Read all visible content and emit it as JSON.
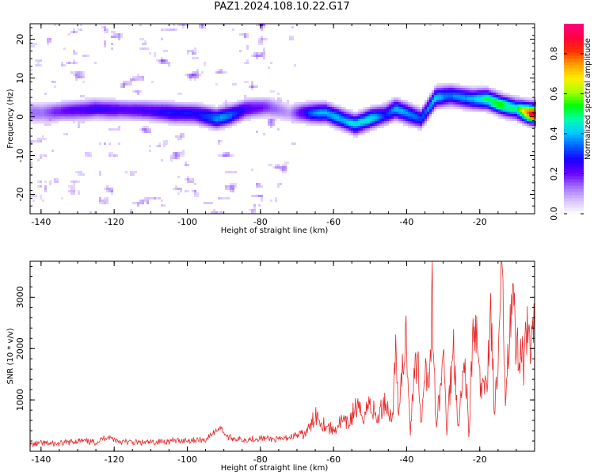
{
  "title": "PAZ1.2024.108.10.22.G17",
  "colors": {
    "snr_line": "#e8282a",
    "axis": "#000000",
    "background": "#ffffff"
  },
  "chart_data": [
    {
      "type": "heatmap",
      "title": "PAZ1.2024.108.10.22.G17",
      "xlabel": "Height of straight line (km)",
      "ylabel": "Frequency (Hz)",
      "xlim": [
        -143,
        -5
      ],
      "ylim": [
        -25,
        24
      ],
      "xticks": [
        -140,
        -120,
        -100,
        -80,
        -60,
        -40,
        -20
      ],
      "yticks": [
        -20,
        -10,
        0,
        10,
        20
      ],
      "xtick_labels": [
        "-140",
        "-120",
        "-100",
        "-80",
        "-60",
        "-40",
        "-20"
      ],
      "ytick_labels": [
        "-20",
        "-10",
        "0",
        "10",
        "20"
      ],
      "colorbar": {
        "label": "Normalized spectral amplitude",
        "range": [
          0,
          0.95
        ],
        "ticks": [
          0.0,
          0.2,
          0.4,
          0.6,
          0.8
        ],
        "tick_labels": [
          "0.0",
          "0.2",
          "0.4",
          "0.6",
          "0.8"
        ],
        "colormap": [
          "#ffffff",
          "#d9c2ff",
          "#a070ff",
          "#6a00ff",
          "#1a00ff",
          "#0060ff",
          "#00ccff",
          "#00ffaa",
          "#00ff00",
          "#aaff00",
          "#ffee00",
          "#ffa000",
          "#ff3000",
          "#ff0040",
          "#ff0080"
        ]
      },
      "ridge": [
        {
          "x": -140,
          "f": 1.0,
          "a": 0.15
        },
        {
          "x": -132,
          "f": 1.5,
          "a": 0.22
        },
        {
          "x": -125,
          "f": 2.0,
          "a": 0.25
        },
        {
          "x": -118,
          "f": 1.8,
          "a": 0.22
        },
        {
          "x": -110,
          "f": 1.5,
          "a": 0.25
        },
        {
          "x": -104,
          "f": 1.0,
          "a": 0.3
        },
        {
          "x": -98,
          "f": 0.8,
          "a": 0.28
        },
        {
          "x": -92,
          "f": -0.5,
          "a": 0.38
        },
        {
          "x": -88,
          "f": 0.5,
          "a": 0.35
        },
        {
          "x": -84,
          "f": 2.0,
          "a": 0.25
        },
        {
          "x": -78,
          "f": 2.5,
          "a": 0.18
        },
        {
          "x": -72,
          "f": 1.0,
          "a": 0.1
        },
        {
          "x": -66,
          "f": 1.0,
          "a": 0.35
        },
        {
          "x": -62,
          "f": 1.0,
          "a": 0.4
        },
        {
          "x": -58,
          "f": -0.5,
          "a": 0.38
        },
        {
          "x": -54,
          "f": -2.0,
          "a": 0.42
        },
        {
          "x": -50,
          "f": -0.5,
          "a": 0.45
        },
        {
          "x": -46,
          "f": 0.5,
          "a": 0.3
        },
        {
          "x": -43,
          "f": 2.0,
          "a": 0.4
        },
        {
          "x": -39,
          "f": 0.5,
          "a": 0.38
        },
        {
          "x": -36,
          "f": -0.5,
          "a": 0.3
        },
        {
          "x": -32,
          "f": 5.0,
          "a": 0.42
        },
        {
          "x": -28,
          "f": 5.5,
          "a": 0.35
        },
        {
          "x": -22,
          "f": 4.5,
          "a": 0.4
        },
        {
          "x": -18,
          "f": 4.5,
          "a": 0.5
        },
        {
          "x": -14,
          "f": 3.0,
          "a": 0.55
        },
        {
          "x": -10,
          "f": 2.0,
          "a": 0.45
        },
        {
          "x": -6,
          "f": 0.8,
          "a": 0.92
        }
      ]
    },
    {
      "type": "line",
      "xlabel": "Height of straight line (km)",
      "ylabel": "SNR (10 * v/v)",
      "xlim": [
        -143,
        -5
      ],
      "ylim": [
        0,
        3700
      ],
      "xticks": [
        -140,
        -120,
        -100,
        -80,
        -60,
        -40,
        -20
      ],
      "yticks": [
        1000,
        2000,
        3000
      ],
      "xtick_labels": [
        "-140",
        "-120",
        "-100",
        "-80",
        "-60",
        "-40",
        "-20"
      ],
      "ytick_labels": [
        "1000",
        "2000",
        "3000"
      ],
      "series": [
        {
          "x": [
            -143,
            -140,
            -135,
            -130,
            -125,
            -122,
            -118,
            -112,
            -106,
            -100,
            -95,
            -91,
            -89,
            -85,
            -80,
            -75,
            -72,
            -70,
            -68,
            -66,
            -65,
            -63,
            -60,
            -58,
            -56,
            -54,
            -52,
            -50,
            -48,
            -46,
            -44,
            -43,
            -42,
            -41,
            -40,
            -39,
            -38,
            -37,
            -36,
            -35,
            -34,
            -33,
            -32,
            -31,
            -30,
            -29,
            -28,
            -27,
            -26,
            -25,
            -24,
            -23,
            -22,
            -21,
            -20,
            -19,
            -18,
            -17,
            -16,
            -15,
            -14,
            -13,
            -12,
            -11,
            -10,
            -9,
            -8,
            -7,
            -6,
            -5
          ],
          "y": [
            100,
            130,
            120,
            180,
            150,
            260,
            160,
            140,
            170,
            190,
            200,
            450,
            250,
            200,
            230,
            200,
            250,
            300,
            330,
            500,
            750,
            550,
            400,
            580,
            520,
            850,
            700,
            950,
            600,
            1000,
            600,
            1850,
            700,
            1700,
            2300,
            400,
            1400,
            1900,
            500,
            1800,
            1200,
            2950,
            500,
            1000,
            1900,
            400,
            1400,
            2100,
            500,
            1100,
            1800,
            300,
            2050,
            2300,
            1300,
            1100,
            1500,
            2800,
            800,
            1500,
            3700,
            1100,
            2500,
            3100,
            1900,
            2100,
            1700,
            2200,
            1900,
            2300
          ]
        }
      ]
    }
  ]
}
